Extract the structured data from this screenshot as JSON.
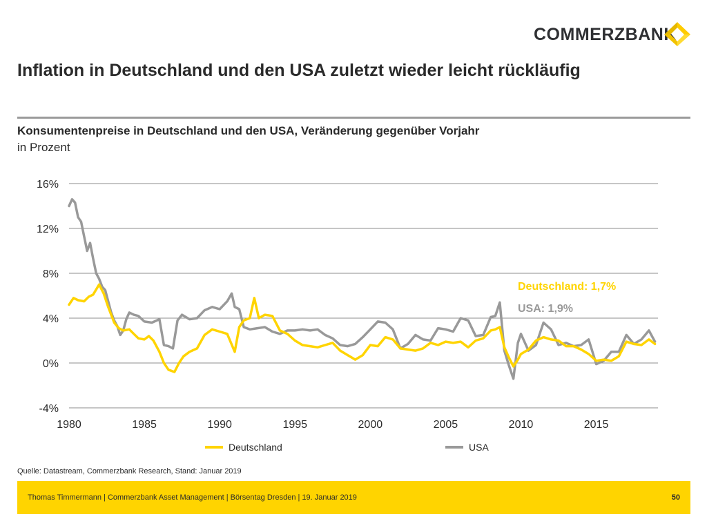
{
  "header": {
    "brand": "COMMERZBANK",
    "title": "Inflation in Deutschland und den USA zuletzt wieder leicht rückläufig"
  },
  "chart_data": {
    "type": "line",
    "title": "Konsumentenpreise in Deutschland und den USA, Veränderung gegenüber Vorjahr",
    "subtitle": "in Prozent",
    "xlabel": "",
    "ylabel": "",
    "xlim": [
      1980,
      2019.1
    ],
    "ylim": [
      -4,
      16
    ],
    "yticks": [
      -4,
      0,
      4,
      8,
      12,
      16
    ],
    "ytick_labels": [
      "-4%",
      "0%",
      "4%",
      "8%",
      "12%",
      "16%"
    ],
    "xticks": [
      1980,
      1985,
      1990,
      1995,
      2000,
      2005,
      2010,
      2015
    ],
    "xtick_labels": [
      "1980",
      "1985",
      "1990",
      "1995",
      "2000",
      "2005",
      "2010",
      "2015"
    ],
    "grid": "horizontal",
    "legend_position": "bottom",
    "series": [
      {
        "name": "Deutschland",
        "color": "#ffd400",
        "x": [
          1980.0,
          1980.3,
          1980.6,
          1981.0,
          1981.3,
          1981.6,
          1982.0,
          1982.3,
          1982.6,
          1983.0,
          1983.3,
          1983.6,
          1984.0,
          1984.3,
          1984.6,
          1985.0,
          1985.3,
          1985.6,
          1986.0,
          1986.3,
          1986.6,
          1987.0,
          1987.3,
          1987.6,
          1988.0,
          1988.5,
          1989.0,
          1989.5,
          1990.0,
          1990.5,
          1991.0,
          1991.3,
          1991.6,
          1992.0,
          1992.3,
          1992.6,
          1993.0,
          1993.5,
          1994.0,
          1994.5,
          1995.0,
          1995.5,
          1996.0,
          1996.5,
          1997.0,
          1997.5,
          1998.0,
          1998.5,
          1999.0,
          1999.5,
          2000.0,
          2000.5,
          2001.0,
          2001.5,
          2002.0,
          2002.5,
          2003.0,
          2003.5,
          2004.0,
          2004.5,
          2005.0,
          2005.5,
          2006.0,
          2006.5,
          2007.0,
          2007.5,
          2008.0,
          2008.3,
          2008.6,
          2008.9,
          2009.2,
          2009.5,
          2009.8,
          2010.0,
          2010.5,
          2011.0,
          2011.5,
          2012.0,
          2012.5,
          2013.0,
          2013.5,
          2014.0,
          2014.5,
          2015.0,
          2015.5,
          2016.0,
          2016.5,
          2017.0,
          2017.5,
          2018.0,
          2018.5,
          2018.9
        ],
        "values": [
          5.2,
          5.8,
          5.6,
          5.5,
          5.9,
          6.1,
          7.0,
          6.2,
          5.0,
          3.6,
          3.1,
          2.9,
          3.0,
          2.6,
          2.2,
          2.1,
          2.4,
          2.0,
          1.0,
          0.0,
          -0.6,
          -0.8,
          0.0,
          0.6,
          1.0,
          1.3,
          2.5,
          3.0,
          2.8,
          2.6,
          1.0,
          3.2,
          3.8,
          4.0,
          5.8,
          4.0,
          4.3,
          4.2,
          2.9,
          2.6,
          2.0,
          1.6,
          1.5,
          1.4,
          1.6,
          1.8,
          1.1,
          0.7,
          0.3,
          0.7,
          1.6,
          1.5,
          2.3,
          2.1,
          1.3,
          1.2,
          1.1,
          1.3,
          1.8,
          1.6,
          1.9,
          1.8,
          1.9,
          1.4,
          2.0,
          2.2,
          2.9,
          3.0,
          3.2,
          1.4,
          0.5,
          -0.3,
          0.3,
          0.8,
          1.2,
          2.0,
          2.3,
          2.1,
          2.0,
          1.5,
          1.5,
          1.2,
          0.8,
          0.2,
          0.3,
          0.2,
          0.6,
          1.9,
          1.7,
          1.6,
          2.1,
          1.7
        ]
      },
      {
        "name": "USA",
        "color": "#999999",
        "x": [
          1980.0,
          1980.2,
          1980.4,
          1980.6,
          1980.8,
          1981.0,
          1981.2,
          1981.4,
          1981.6,
          1981.8,
          1982.0,
          1982.2,
          1982.4,
          1982.6,
          1982.8,
          1983.0,
          1983.2,
          1983.4,
          1983.6,
          1983.8,
          1984.0,
          1984.3,
          1984.6,
          1985.0,
          1985.5,
          1986.0,
          1986.3,
          1986.6,
          1986.9,
          1987.2,
          1987.5,
          1988.0,
          1988.5,
          1989.0,
          1989.5,
          1990.0,
          1990.5,
          1990.8,
          1991.0,
          1991.3,
          1991.6,
          1992.0,
          1992.5,
          1993.0,
          1993.5,
          1994.0,
          1994.5,
          1995.0,
          1995.5,
          1996.0,
          1996.5,
          1997.0,
          1997.5,
          1998.0,
          1998.5,
          1999.0,
          1999.5,
          2000.0,
          2000.5,
          2001.0,
          2001.5,
          2002.0,
          2002.5,
          2003.0,
          2003.5,
          2004.0,
          2004.5,
          2005.0,
          2005.5,
          2006.0,
          2006.5,
          2007.0,
          2007.5,
          2008.0,
          2008.3,
          2008.6,
          2008.9,
          2009.2,
          2009.5,
          2009.8,
          2010.0,
          2010.5,
          2011.0,
          2011.5,
          2012.0,
          2012.5,
          2013.0,
          2013.5,
          2014.0,
          2014.5,
          2015.0,
          2015.5,
          2016.0,
          2016.5,
          2017.0,
          2017.5,
          2018.0,
          2018.5,
          2018.9
        ],
        "values": [
          14.0,
          14.6,
          14.3,
          13.0,
          12.6,
          11.3,
          10.0,
          10.7,
          9.3,
          8.0,
          7.5,
          6.8,
          6.5,
          5.5,
          4.5,
          3.8,
          3.3,
          2.5,
          2.9,
          3.9,
          4.5,
          4.3,
          4.2,
          3.7,
          3.6,
          3.9,
          1.6,
          1.5,
          1.3,
          3.8,
          4.3,
          3.9,
          4.0,
          4.7,
          5.0,
          4.8,
          5.5,
          6.2,
          5.0,
          4.8,
          3.2,
          3.0,
          3.1,
          3.2,
          2.8,
          2.6,
          2.9,
          2.9,
          3.0,
          2.9,
          3.0,
          2.5,
          2.2,
          1.6,
          1.5,
          1.7,
          2.3,
          3.0,
          3.7,
          3.6,
          3.0,
          1.3,
          1.7,
          2.5,
          2.1,
          2.0,
          3.1,
          3.0,
          2.8,
          4.0,
          3.8,
          2.4,
          2.5,
          4.1,
          4.2,
          5.4,
          1.1,
          -0.2,
          -1.4,
          1.8,
          2.6,
          1.1,
          1.6,
          3.6,
          3.0,
          1.6,
          1.8,
          1.5,
          1.6,
          2.1,
          -0.1,
          0.2,
          1.0,
          1.0,
          2.5,
          1.7,
          2.1,
          2.9,
          1.9
        ]
      }
    ],
    "annotations": [
      {
        "text": "Deutschland: 1,7%",
        "series": "Deutschland",
        "color": "#ffd400"
      },
      {
        "text": "USA: 1,9%",
        "series": "USA",
        "color": "#999999"
      }
    ]
  },
  "source": "Quelle: Datastream, Commerzbank Research, Stand: Januar 2019",
  "footer": {
    "text": "Thomas Timmermann | Commerzbank Asset Management | Börsentag Dresden | 19. Januar 2019",
    "page": "50"
  }
}
